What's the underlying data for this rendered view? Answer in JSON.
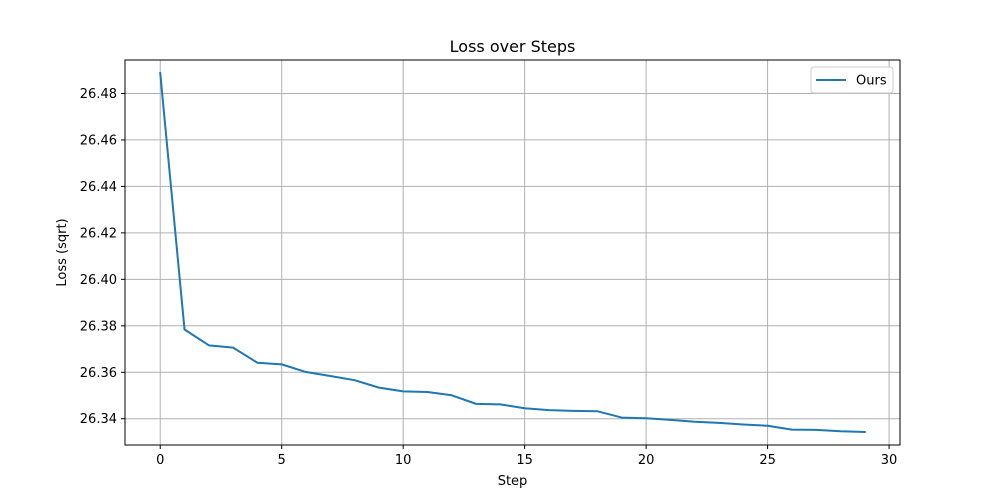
{
  "chart_data": {
    "type": "line",
    "title": "Loss over Steps",
    "xlabel": "Step",
    "ylabel": "Loss (sqrt)",
    "xlim": [
      -1.45,
      30.45
    ],
    "ylim": [
      26.3287,
      26.4944
    ],
    "xticks": [
      0,
      5,
      10,
      15,
      20,
      25,
      30
    ],
    "yticks": [
      26.34,
      26.36,
      26.38,
      26.4,
      26.42,
      26.44,
      26.46,
      26.48
    ],
    "xtick_labels": [
      "0",
      "5",
      "10",
      "15",
      "20",
      "25",
      "30"
    ],
    "ytick_labels": [
      "26.34",
      "26.36",
      "26.38",
      "26.40",
      "26.42",
      "26.44",
      "26.46",
      "26.48"
    ],
    "grid": true,
    "legend_position": "top-right",
    "series": [
      {
        "name": "Ours",
        "color": "#1f77b4",
        "x": [
          0,
          1,
          2,
          3,
          4,
          5,
          6,
          7,
          8,
          9,
          10,
          11,
          12,
          13,
          14,
          15,
          16,
          17,
          18,
          19,
          20,
          21,
          22,
          23,
          24,
          25,
          26,
          27,
          28,
          29
        ],
        "values": [
          26.4888,
          26.3784,
          26.3716,
          26.3706,
          26.3641,
          26.3634,
          26.3601,
          26.3584,
          26.3566,
          26.3534,
          26.3518,
          26.3515,
          26.3501,
          26.3464,
          26.3462,
          26.3445,
          26.3437,
          26.3434,
          26.3432,
          26.3405,
          26.3402,
          26.3395,
          26.3387,
          26.3382,
          26.3375,
          26.337,
          26.3353,
          26.3352,
          26.3346,
          26.3343
        ]
      }
    ]
  }
}
